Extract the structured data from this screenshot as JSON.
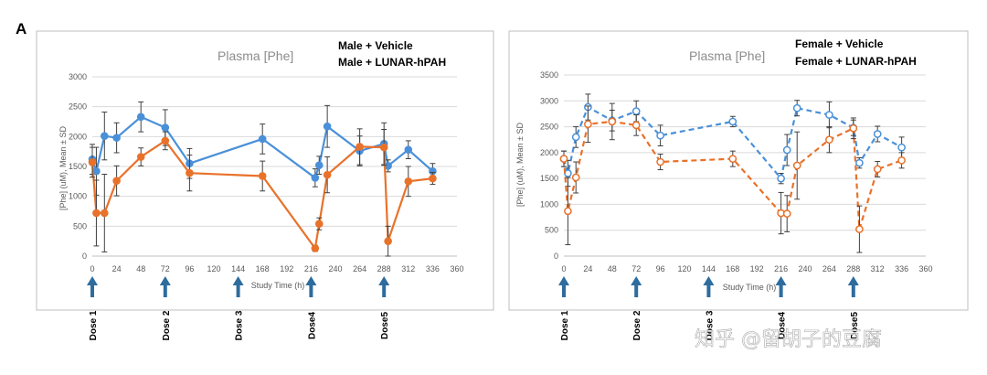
{
  "panel_letter": "A",
  "watermark": "知乎 @留胡子的豆腐",
  "colors": {
    "blue": "#4a90d9",
    "orange": "#e8722a",
    "grey": "#999999",
    "arrow": "#2e6c9e",
    "error": "#404040"
  },
  "dose_labels": [
    "Dose 1",
    "Dose 2",
    "Dose 3",
    "Dose4",
    "Dose5"
  ],
  "dose_times": [
    0,
    72,
    144,
    216,
    288
  ],
  "chart_data": [
    {
      "type": "line",
      "title": "Plasma [Phe]",
      "legend": [
        "Male + Vehicle",
        "Male + LUNAR-hPAH"
      ],
      "legend_position": "top-right",
      "xlabel": "Study Time (h)",
      "ylabel": "[Phe] (uM), Mean ± SD",
      "xlim": [
        0,
        360
      ],
      "ylim": [
        0,
        3000
      ],
      "xticks": [
        0,
        24,
        48,
        72,
        96,
        120,
        144,
        168,
        192,
        216,
        240,
        264,
        288,
        312,
        336,
        360
      ],
      "yticks": [
        0,
        500,
        1000,
        1500,
        2000,
        2500,
        3000
      ],
      "line_style": "solid",
      "series": [
        {
          "name": "Male + Vehicle",
          "color": "#4a90d9",
          "x": [
            0,
            4,
            12,
            24,
            48,
            72,
            96,
            168,
            220,
            224,
            232,
            264,
            288,
            292,
            312,
            336
          ],
          "y": [
            1620,
            1420,
            2010,
            1980,
            2330,
            2150,
            1550,
            1960,
            1310,
            1520,
            2170,
            1760,
            1880,
            1510,
            1780,
            1420
          ],
          "err": [
            250,
            400,
            400,
            250,
            250,
            300,
            250,
            250,
            150,
            150,
            350,
            250,
            350,
            100,
            150,
            130
          ]
        },
        {
          "name": "Male + LUNAR-hPAH",
          "color": "#e8722a",
          "x": [
            0,
            4,
            12,
            24,
            48,
            72,
            96,
            168,
            220,
            224,
            232,
            264,
            288,
            292,
            312,
            336
          ],
          "y": [
            1570,
            720,
            720,
            1260,
            1660,
            1930,
            1390,
            1340,
            130,
            540,
            1360,
            1830,
            1820,
            250,
            1250,
            1300
          ],
          "err": [
            250,
            550,
            650,
            250,
            150,
            150,
            300,
            250,
            50,
            100,
            300,
            300,
            300,
            250,
            250,
            100
          ]
        }
      ]
    },
    {
      "type": "line",
      "title": "Plasma [Phe]",
      "legend": [
        "Female + Vehicle",
        "Female + LUNAR-hPAH"
      ],
      "legend_position": "top-right",
      "xlabel": "Study Time (h)",
      "ylabel": "[Phe] (uM), Mean ± SD",
      "xlim": [
        0,
        360
      ],
      "ylim": [
        0,
        3500
      ],
      "xticks": [
        0,
        24,
        48,
        72,
        96,
        120,
        144,
        168,
        192,
        216,
        240,
        264,
        288,
        312,
        336,
        360
      ],
      "yticks": [
        0,
        500,
        1000,
        1500,
        2000,
        2500,
        3000,
        3500
      ],
      "line_style": "dashed",
      "series": [
        {
          "name": "Female + Vehicle",
          "color": "#4a90d9",
          "x": [
            0,
            4,
            12,
            24,
            48,
            72,
            96,
            168,
            216,
            222,
            232,
            264,
            288,
            294,
            312,
            336
          ],
          "y": [
            1880,
            1600,
            2300,
            2880,
            2620,
            2800,
            2330,
            2600,
            1500,
            2050,
            2860,
            2730,
            2480,
            1800,
            2360,
            2100
          ],
          "err": [
            150,
            250,
            200,
            250,
            200,
            200,
            200,
            100,
            100,
            300,
            150,
            250,
            150,
            100,
            150,
            200
          ]
        },
        {
          "name": "Female + LUNAR-hPAH",
          "color": "#e8722a",
          "x": [
            0,
            4,
            12,
            24,
            48,
            72,
            96,
            168,
            216,
            222,
            232,
            264,
            288,
            294,
            312,
            336
          ],
          "y": [
            1880,
            870,
            1520,
            2550,
            2600,
            2530,
            1820,
            1880,
            830,
            820,
            1750,
            2250,
            2470,
            520,
            1680,
            1850
          ],
          "err": [
            150,
            650,
            300,
            350,
            350,
            200,
            150,
            150,
            400,
            350,
            650,
            250,
            200,
            450,
            150,
            150
          ]
        }
      ]
    }
  ]
}
